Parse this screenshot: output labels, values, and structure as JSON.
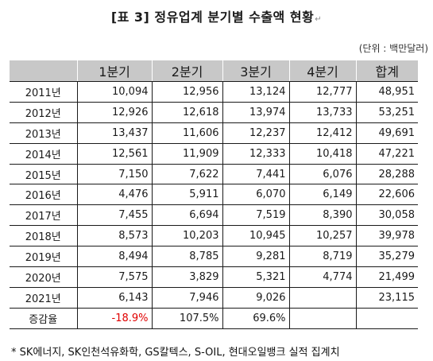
{
  "title": "[표 3] 정유업계 분기별 수출액 현황",
  "title_mark": "↵",
  "unit": "(단위 : 백만달러)",
  "columns": [
    "",
    "1분기",
    "2분기",
    "3분기",
    "4분기",
    "합계"
  ],
  "rows": [
    {
      "year": "2011년",
      "q1": "10,094",
      "q2": "12,956",
      "q3": "13,124",
      "q4": "12,777",
      "total": "48,951"
    },
    {
      "year": "2012년",
      "q1": "12,926",
      "q2": "12,618",
      "q3": "13,974",
      "q4": "13,733",
      "total": "53,251"
    },
    {
      "year": "2013년",
      "q1": "13,437",
      "q2": "11,606",
      "q3": "12,237",
      "q4": "12,412",
      "total": "49,691"
    },
    {
      "year": "2014년",
      "q1": "12,561",
      "q2": "11,909",
      "q3": "12,333",
      "q4": "10,418",
      "total": "47,221"
    },
    {
      "year": "2015년",
      "q1": "7,150",
      "q2": "7,622",
      "q3": "7,441",
      "q4": "6,076",
      "total": "28,288"
    },
    {
      "year": "2016년",
      "q1": "4,476",
      "q2": "5,911",
      "q3": "6,070",
      "q4": "6,149",
      "total": "22,606"
    },
    {
      "year": "2017년",
      "q1": "7,455",
      "q2": "6,694",
      "q3": "7,519",
      "q4": "8,390",
      "total": "30,058"
    },
    {
      "year": "2018년",
      "q1": "8,573",
      "q2": "10,203",
      "q3": "10,945",
      "q4": "10,257",
      "total": "39,978"
    },
    {
      "year": "2019년",
      "q1": "8,494",
      "q2": "8,785",
      "q3": "9,281",
      "q4": "8,719",
      "total": "35,279"
    },
    {
      "year": "2020년",
      "q1": "7,575",
      "q2": "3,829",
      "q3": "5,321",
      "q4": "4,774",
      "total": "21,499"
    },
    {
      "year": "2021년",
      "q1": "6,143",
      "q2": "7,946",
      "q3": "9,026",
      "q4": "",
      "total": "23,115"
    }
  ],
  "change_row": {
    "label": "증감율",
    "q1": "-18.9%",
    "q2": "107.5%",
    "q3": "69.6%",
    "q4": "",
    "total": ""
  },
  "negative_color": "#e00000",
  "header_bg": "#c8c8c8",
  "footnote": "* SK에너지, SK인천석유화학, GS칼텍스, S-OIL, 현대오일뱅크 실적 집계치"
}
